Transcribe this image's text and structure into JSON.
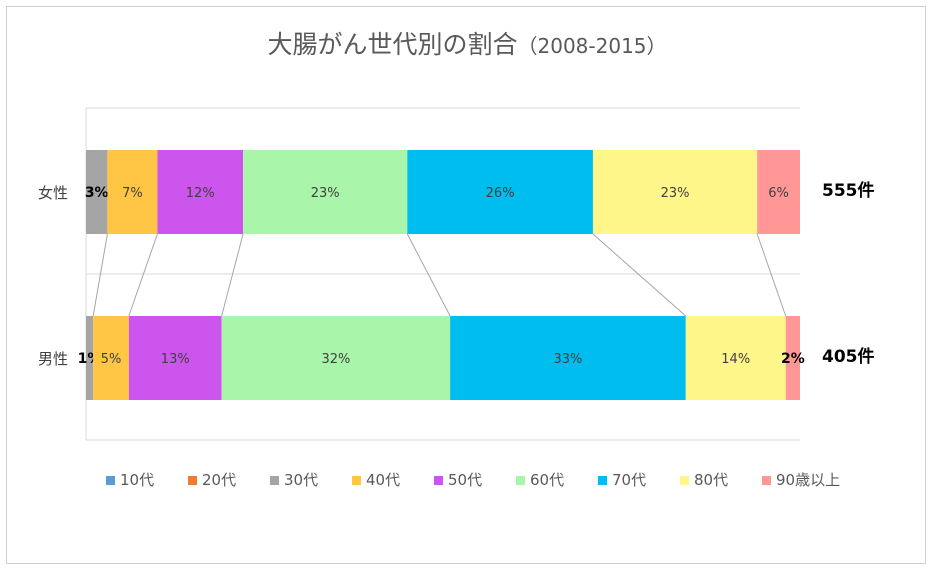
{
  "chart_data": {
    "type": "bar",
    "orientation": "horizontal",
    "stacked": "percent",
    "title": "大腸がん世代別の割合",
    "title_suffix": "（2008-2015）",
    "categories": [
      "女性",
      "男性"
    ],
    "totals": [
      "555件",
      "405件"
    ],
    "series": [
      {
        "name": "10代",
        "color": "#5b9bd5",
        "values": [
          0,
          0
        ],
        "labels": [
          "",
          ""
        ]
      },
      {
        "name": "20代",
        "color": "#ed7d31",
        "values": [
          0,
          0
        ],
        "labels": [
          "",
          ""
        ]
      },
      {
        "name": "30代",
        "color": "#a5a5a5",
        "values": [
          3,
          1
        ],
        "labels": [
          "3%",
          "1%"
        ]
      },
      {
        "name": "40代",
        "color": "#ffc544",
        "values": [
          7,
          5
        ],
        "labels": [
          "7%",
          "5%"
        ]
      },
      {
        "name": "50代",
        "color": "#cc55ee",
        "values": [
          12,
          13
        ],
        "labels": [
          "12%",
          "13%"
        ]
      },
      {
        "name": "60代",
        "color": "#a9f5a9",
        "values": [
          23,
          32
        ],
        "labels": [
          "23%",
          "32%"
        ]
      },
      {
        "name": "70代",
        "color": "#00bdef",
        "values": [
          26,
          33
        ],
        "labels": [
          "26%",
          "33%"
        ]
      },
      {
        "name": "80代",
        "color": "#fff68a",
        "values": [
          23,
          14
        ],
        "labels": [
          "23%",
          "14%"
        ]
      },
      {
        "name": "90歳以上",
        "color": "#ff9797",
        "values": [
          6,
          2
        ],
        "labels": [
          "6%",
          "2%"
        ]
      }
    ],
    "xlim": [
      0,
      100
    ],
    "series_lines": true,
    "grid": true,
    "legend_position": "bottom"
  }
}
